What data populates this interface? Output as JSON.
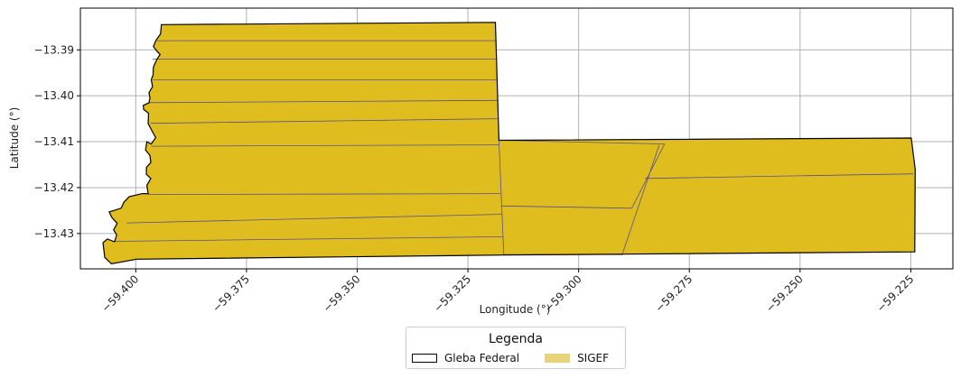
{
  "map": {
    "x_axis": {
      "label": "Longitude (°)",
      "range": [
        -59.4125,
        -59.2155
      ],
      "ticks": [
        {
          "value": -59.4,
          "label": "−59.400"
        },
        {
          "value": -59.375,
          "label": "−59.375"
        },
        {
          "value": -59.35,
          "label": "−59.350"
        },
        {
          "value": -59.325,
          "label": "−59.325"
        },
        {
          "value": -59.3,
          "label": "−59.300"
        },
        {
          "value": -59.275,
          "label": "−59.275"
        },
        {
          "value": -59.25,
          "label": "−59.250"
        },
        {
          "value": -59.225,
          "label": "−59.225"
        }
      ]
    },
    "y_axis": {
      "label": "Latitude (°)",
      "range": [
        -13.4377,
        -13.3809
      ],
      "ticks": [
        {
          "value": -13.39,
          "label": "−13.39"
        },
        {
          "value": -13.4,
          "label": "−13.40"
        },
        {
          "value": -13.41,
          "label": "−13.41"
        },
        {
          "value": -13.42,
          "label": "−13.42"
        },
        {
          "value": -13.43,
          "label": "−13.43"
        }
      ]
    },
    "grid": true,
    "colors": {
      "fill": "#dfbd1f",
      "boundary": "#000000",
      "parcel_lines": "#5a4f8a",
      "grid": "#b0b0b0",
      "legend_sigef": "#e8d27a"
    },
    "gleba_boundary": [
      [
        -59.3942,
        -13.3845
      ],
      [
        -59.3188,
        -13.384
      ],
      [
        -59.318,
        -13.4097
      ],
      [
        -59.2249,
        -13.4092
      ],
      [
        -59.224,
        -13.416
      ],
      [
        -59.2241,
        -13.434
      ],
      [
        -59.2897,
        -13.4345
      ],
      [
        -59.3169,
        -13.4347
      ],
      [
        -59.3998,
        -13.4356
      ],
      [
        -59.4055,
        -13.4366
      ],
      [
        -59.407,
        -13.4352
      ],
      [
        -59.4074,
        -13.432
      ],
      [
        -59.4064,
        -13.4312
      ],
      [
        -59.4048,
        -13.4318
      ],
      [
        -59.4043,
        -13.4303
      ],
      [
        -59.405,
        -13.4292
      ],
      [
        -59.4042,
        -13.4278
      ],
      [
        -59.4054,
        -13.4265
      ],
      [
        -59.406,
        -13.4253
      ],
      [
        -59.405,
        -13.425
      ],
      [
        -59.4033,
        -13.4245
      ],
      [
        -59.4027,
        -13.4232
      ],
      [
        -59.4015,
        -13.422
      ],
      [
        -59.3985,
        -13.4213
      ],
      [
        -59.3972,
        -13.4213
      ],
      [
        -59.3975,
        -13.4195
      ],
      [
        -59.3966,
        -13.418
      ],
      [
        -59.3976,
        -13.4171
      ],
      [
        -59.3976,
        -13.4156
      ],
      [
        -59.3966,
        -13.4145
      ],
      [
        -59.3968,
        -13.413
      ],
      [
        -59.3978,
        -13.4118
      ],
      [
        -59.3975,
        -13.41
      ],
      [
        -59.3965,
        -13.4105
      ],
      [
        -59.3955,
        -13.4091
      ],
      [
        -59.3963,
        -13.4077
      ],
      [
        -59.3972,
        -13.406
      ],
      [
        -59.3971,
        -13.4038
      ],
      [
        -59.3982,
        -13.403
      ],
      [
        -59.3983,
        -13.4021
      ],
      [
        -59.397,
        -13.4015
      ],
      [
        -59.3968,
        -13.4005
      ],
      [
        -59.397,
        -13.3993
      ],
      [
        -59.3962,
        -13.398
      ],
      [
        -59.3965,
        -13.3965
      ],
      [
        -59.3961,
        -13.3955
      ],
      [
        -59.396,
        -13.3937
      ],
      [
        -59.3952,
        -13.392
      ],
      [
        -59.3945,
        -13.391
      ],
      [
        -59.3952,
        -13.3903
      ],
      [
        -59.396,
        -13.3893
      ],
      [
        -59.3955,
        -13.388
      ],
      [
        -59.3944,
        -13.3865
      ],
      [
        -59.3942,
        -13.3845
      ]
    ],
    "parcel_lines": [
      [
        [
          -59.3952,
          -13.388
        ],
        [
          -59.3188,
          -13.388
        ]
      ],
      [
        [
          -59.3962,
          -13.392
        ],
        [
          -59.3186,
          -13.392
        ]
      ],
      [
        [
          -59.3961,
          -13.3965
        ],
        [
          -59.3185,
          -13.3965
        ]
      ],
      [
        [
          -59.3971,
          -13.4015
        ],
        [
          -59.3183,
          -13.401
        ]
      ],
      [
        [
          -59.3966,
          -13.406
        ],
        [
          -59.3182,
          -13.405
        ]
      ],
      [
        [
          -59.3965,
          -13.411
        ],
        [
          -59.318,
          -13.4107
        ]
      ],
      [
        [
          -59.3972,
          -13.4215
        ],
        [
          -59.3175,
          -13.4213
        ]
      ],
      [
        [
          -59.402,
          -13.4277
        ],
        [
          -59.3172,
          -13.4258
        ]
      ],
      [
        [
          -59.405,
          -13.4317
        ],
        [
          -59.317,
          -13.4307
        ]
      ],
      [
        [
          -59.318,
          -13.4097
        ],
        [
          -59.3169,
          -13.4347
        ]
      ],
      [
        [
          -59.2818,
          -13.4107
        ],
        [
          -59.2902,
          -13.4347
        ]
      ],
      [
        [
          -59.2806,
          -13.4105
        ],
        [
          -59.288,
          -13.4245
        ]
      ],
      [
        [
          -59.3175,
          -13.424
        ],
        [
          -59.288,
          -13.4245
        ]
      ],
      [
        [
          -59.3169,
          -13.4346
        ],
        [
          -59.2902,
          -13.4346
        ]
      ],
      [
        [
          -59.285,
          -13.418
        ],
        [
          -59.2245,
          -13.417
        ]
      ],
      [
        [
          -59.318,
          -13.4097
        ],
        [
          -59.2806,
          -13.4105
        ]
      ]
    ]
  },
  "legend": {
    "title": "Legenda",
    "items": [
      {
        "label": "Gleba Federal"
      },
      {
        "label": "SIGEF"
      }
    ]
  }
}
